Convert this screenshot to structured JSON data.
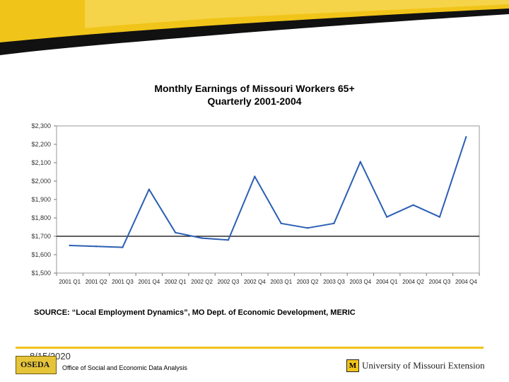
{
  "chart_data": {
    "type": "line",
    "title": "Monthly Earnings of Missouri Workers 65+",
    "subtitle": "Quarterly 2001-2004",
    "categories": [
      "2001 Q1",
      "2001 Q2",
      "2001 Q3",
      "2001 Q4",
      "2002 Q1",
      "2002 Q2",
      "2002 Q3",
      "2002 Q4",
      "2003 Q1",
      "2003 Q2",
      "2003 Q3",
      "2003 Q4",
      "2004 Q1",
      "2004 Q2",
      "2004 Q3",
      "2004 Q4"
    ],
    "values": [
      1650,
      1645,
      1640,
      1955,
      1720,
      1690,
      1680,
      2025,
      1770,
      1745,
      1770,
      2105,
      1805,
      1870,
      1805,
      2240
    ],
    "ylim": [
      1500,
      2300
    ],
    "yticks": [
      1500,
      1600,
      1700,
      1800,
      1900,
      2000,
      2100,
      2200,
      2300
    ],
    "ytick_labels": [
      "$1,500",
      "$1,600",
      "$1,700",
      "$1,800",
      "$1,900",
      "$2,000",
      "$2,100",
      "$2,200",
      "$2,300"
    ],
    "reference_line": 1700,
    "xlabel": "",
    "ylabel": "",
    "grid": false,
    "line_color": "#2b5fb4"
  },
  "source_text": "SOURCE: “Local Employment Dynamics”, MO Dept. of Economic Development, MERIC",
  "footer": {
    "date": "8/15/2020",
    "oseda_logo_text": "OSEDA",
    "office": "Office of Social and Economic Data Analysis",
    "um_mark": "M",
    "um_text": "University of Missouri Extension"
  },
  "colors": {
    "banner_yellow": "#f1c419",
    "banner_black": "#111111",
    "accent_gold": "#f1c419"
  }
}
